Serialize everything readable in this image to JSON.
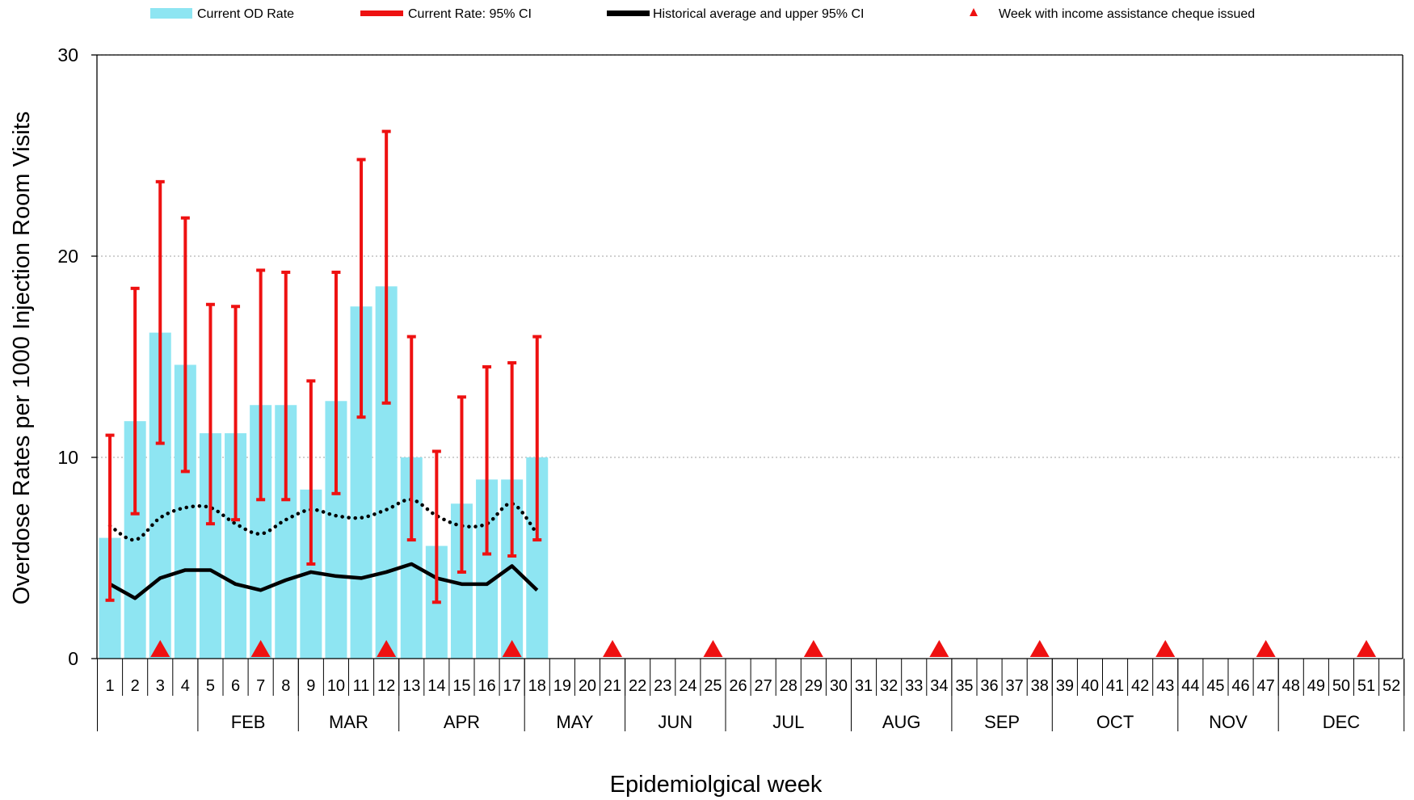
{
  "chart_data": {
    "type": "bar",
    "title": "",
    "xlabel": "Epidemiolgical week",
    "ylabel": "Overdose Rates per 1000 Injection Room Visits",
    "ylim": [
      0,
      30
    ],
    "yticks": [
      0,
      10,
      20,
      30
    ],
    "grid": "horizontal dotted",
    "legend_position": "top",
    "weeks": [
      "1",
      "2",
      "3",
      "4",
      "5",
      "6",
      "7",
      "8",
      "9",
      "10",
      "11",
      "12",
      "13",
      "14",
      "15",
      "16",
      "17",
      "18",
      "19",
      "20",
      "21",
      "22",
      "23",
      "24",
      "25",
      "26",
      "27",
      "28",
      "29",
      "30",
      "31",
      "32",
      "33",
      "34",
      "35",
      "36",
      "37",
      "38",
      "39",
      "40",
      "41",
      "42",
      "43",
      "44",
      "45",
      "46",
      "47",
      "48",
      "49",
      "50",
      "51",
      "52"
    ],
    "months": [
      {
        "label": "",
        "start_week": 1,
        "end_week": 4
      },
      {
        "label": "FEB",
        "start_week": 5,
        "end_week": 8
      },
      {
        "label": "MAR",
        "start_week": 9,
        "end_week": 12
      },
      {
        "label": "APR",
        "start_week": 13,
        "end_week": 17
      },
      {
        "label": "MAY",
        "start_week": 18,
        "end_week": 21
      },
      {
        "label": "JUN",
        "start_week": 22,
        "end_week": 25
      },
      {
        "label": "JUL",
        "start_week": 26,
        "end_week": 30
      },
      {
        "label": "AUG",
        "start_week": 31,
        "end_week": 34
      },
      {
        "label": "SEP",
        "start_week": 35,
        "end_week": 38
      },
      {
        "label": "OCT",
        "start_week": 39,
        "end_week": 43
      },
      {
        "label": "NOV",
        "start_week": 44,
        "end_week": 47
      },
      {
        "label": "DEC",
        "start_week": 48,
        "end_week": 52
      }
    ],
    "series": [
      {
        "name": "Current OD Rate",
        "type": "bar",
        "color": "#8ee5f2",
        "weeks": [
          1,
          2,
          3,
          4,
          5,
          6,
          7,
          8,
          9,
          10,
          11,
          12,
          13,
          14,
          15,
          16,
          17,
          18
        ],
        "values": [
          6.0,
          11.8,
          16.2,
          14.6,
          11.2,
          11.2,
          12.6,
          12.6,
          8.4,
          12.8,
          17.5,
          18.5,
          10.0,
          5.6,
          7.7,
          8.9,
          8.9,
          10.0
        ]
      },
      {
        "name": "Current Rate: 95% CI",
        "type": "errorbar",
        "color": "#ee1111",
        "weeks": [
          1,
          2,
          3,
          4,
          5,
          6,
          7,
          8,
          9,
          10,
          11,
          12,
          13,
          14,
          15,
          16,
          17,
          18
        ],
        "lower": [
          2.9,
          7.2,
          10.7,
          9.3,
          6.7,
          6.9,
          7.9,
          7.9,
          4.7,
          8.2,
          12.0,
          12.7,
          5.9,
          2.8,
          4.3,
          5.2,
          5.1,
          5.9
        ],
        "upper": [
          11.1,
          18.4,
          23.7,
          21.9,
          17.6,
          17.5,
          19.3,
          19.2,
          13.8,
          19.2,
          24.8,
          26.2,
          16.0,
          10.3,
          13.0,
          14.5,
          14.7,
          16.0
        ]
      },
      {
        "name": "Historical average and upper 95% CI",
        "type": "line",
        "color": "#000000",
        "weeks": [
          1,
          2,
          3,
          4,
          5,
          6,
          7,
          8,
          9,
          10,
          11,
          12,
          13,
          14,
          15,
          16,
          17,
          18
        ],
        "values": [
          3.7,
          3.0,
          4.0,
          4.4,
          4.4,
          3.7,
          3.4,
          3.9,
          4.3,
          4.1,
          4.0,
          4.3,
          4.7,
          4.0,
          3.7,
          3.7,
          4.6,
          3.4
        ],
        "upper_ci": [
          6.6,
          5.9,
          7.0,
          7.5,
          7.5,
          6.7,
          6.2,
          6.9,
          7.4,
          7.1,
          7.0,
          7.4,
          7.9,
          7.1,
          6.6,
          6.7,
          7.7,
          6.2
        ]
      },
      {
        "name": "Week with income assistance cheque issued",
        "type": "marker",
        "color": "#ee1111",
        "weeks": [
          3,
          7,
          12,
          17,
          21,
          25,
          29,
          34,
          38,
          43,
          47,
          51
        ]
      }
    ]
  }
}
